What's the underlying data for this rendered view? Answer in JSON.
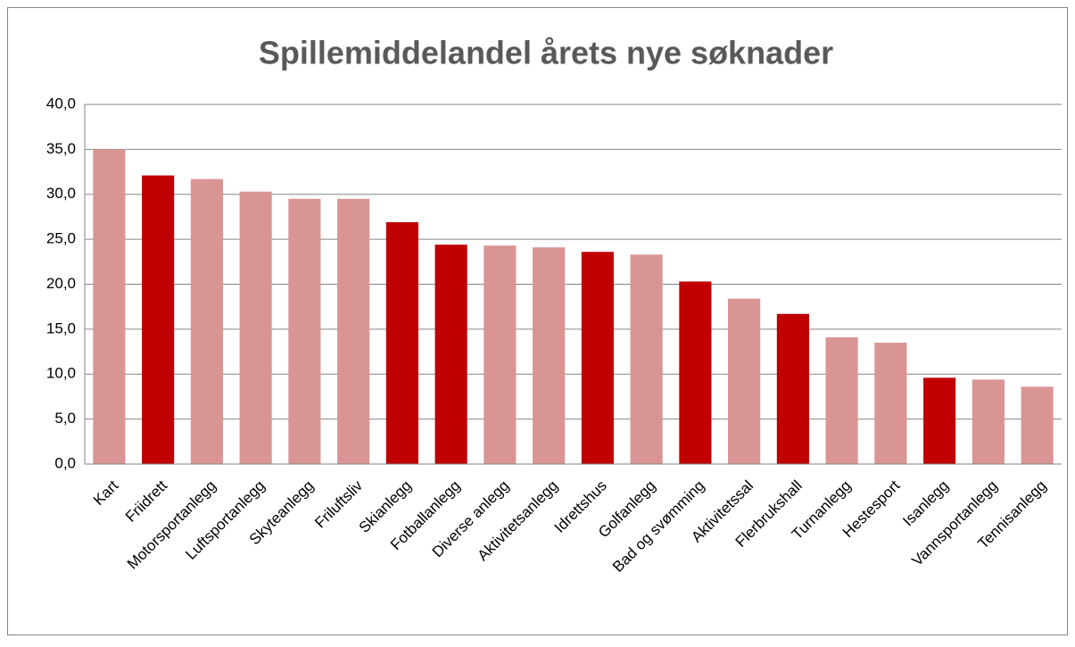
{
  "chart_data": {
    "type": "bar",
    "title": "Spillemiddelandel årets nye søknader",
    "categories": [
      "Kart",
      "Friidrett",
      "Motorsportanlegg",
      "Luftsportanlegg",
      "Skyteanlegg",
      "Friluftsliv",
      "Skianlegg",
      "Fotballanlegg",
      "Diverse anlegg",
      "Aktivitetsanlegg",
      "Idrettshus",
      "Golfanlegg",
      "Bad og svømming",
      "Aktivitetssal",
      "Flerbrukshall",
      "Turnanlegg",
      "Hestesport",
      "Isanlegg",
      "Vannsportanlegg",
      "Tennisanlegg"
    ],
    "values": [
      35.0,
      32.1,
      31.7,
      30.3,
      29.5,
      29.5,
      26.9,
      24.4,
      24.3,
      24.1,
      23.6,
      23.3,
      20.3,
      18.4,
      16.7,
      14.1,
      13.5,
      9.6,
      9.4,
      8.6
    ],
    "colors": [
      "#d99594",
      "#c00000",
      "#d99594",
      "#d99594",
      "#d99594",
      "#d99594",
      "#c00000",
      "#c00000",
      "#d99594",
      "#d99594",
      "#c00000",
      "#d99594",
      "#c00000",
      "#d99594",
      "#c00000",
      "#d99594",
      "#d99594",
      "#c00000",
      "#d99594",
      "#d99594"
    ],
    "ylim": [
      0,
      40
    ],
    "yticks": [
      {
        "value": 0,
        "label": "0,0"
      },
      {
        "value": 5,
        "label": "5,0"
      },
      {
        "value": 10,
        "label": "10,0"
      },
      {
        "value": 15,
        "label": "15,0"
      },
      {
        "value": 20,
        "label": "20,0"
      },
      {
        "value": 25,
        "label": "25,0"
      },
      {
        "value": 30,
        "label": "30,0"
      },
      {
        "value": 35,
        "label": "35,0"
      },
      {
        "value": 40,
        "label": "40,0"
      }
    ],
    "grid": true
  }
}
